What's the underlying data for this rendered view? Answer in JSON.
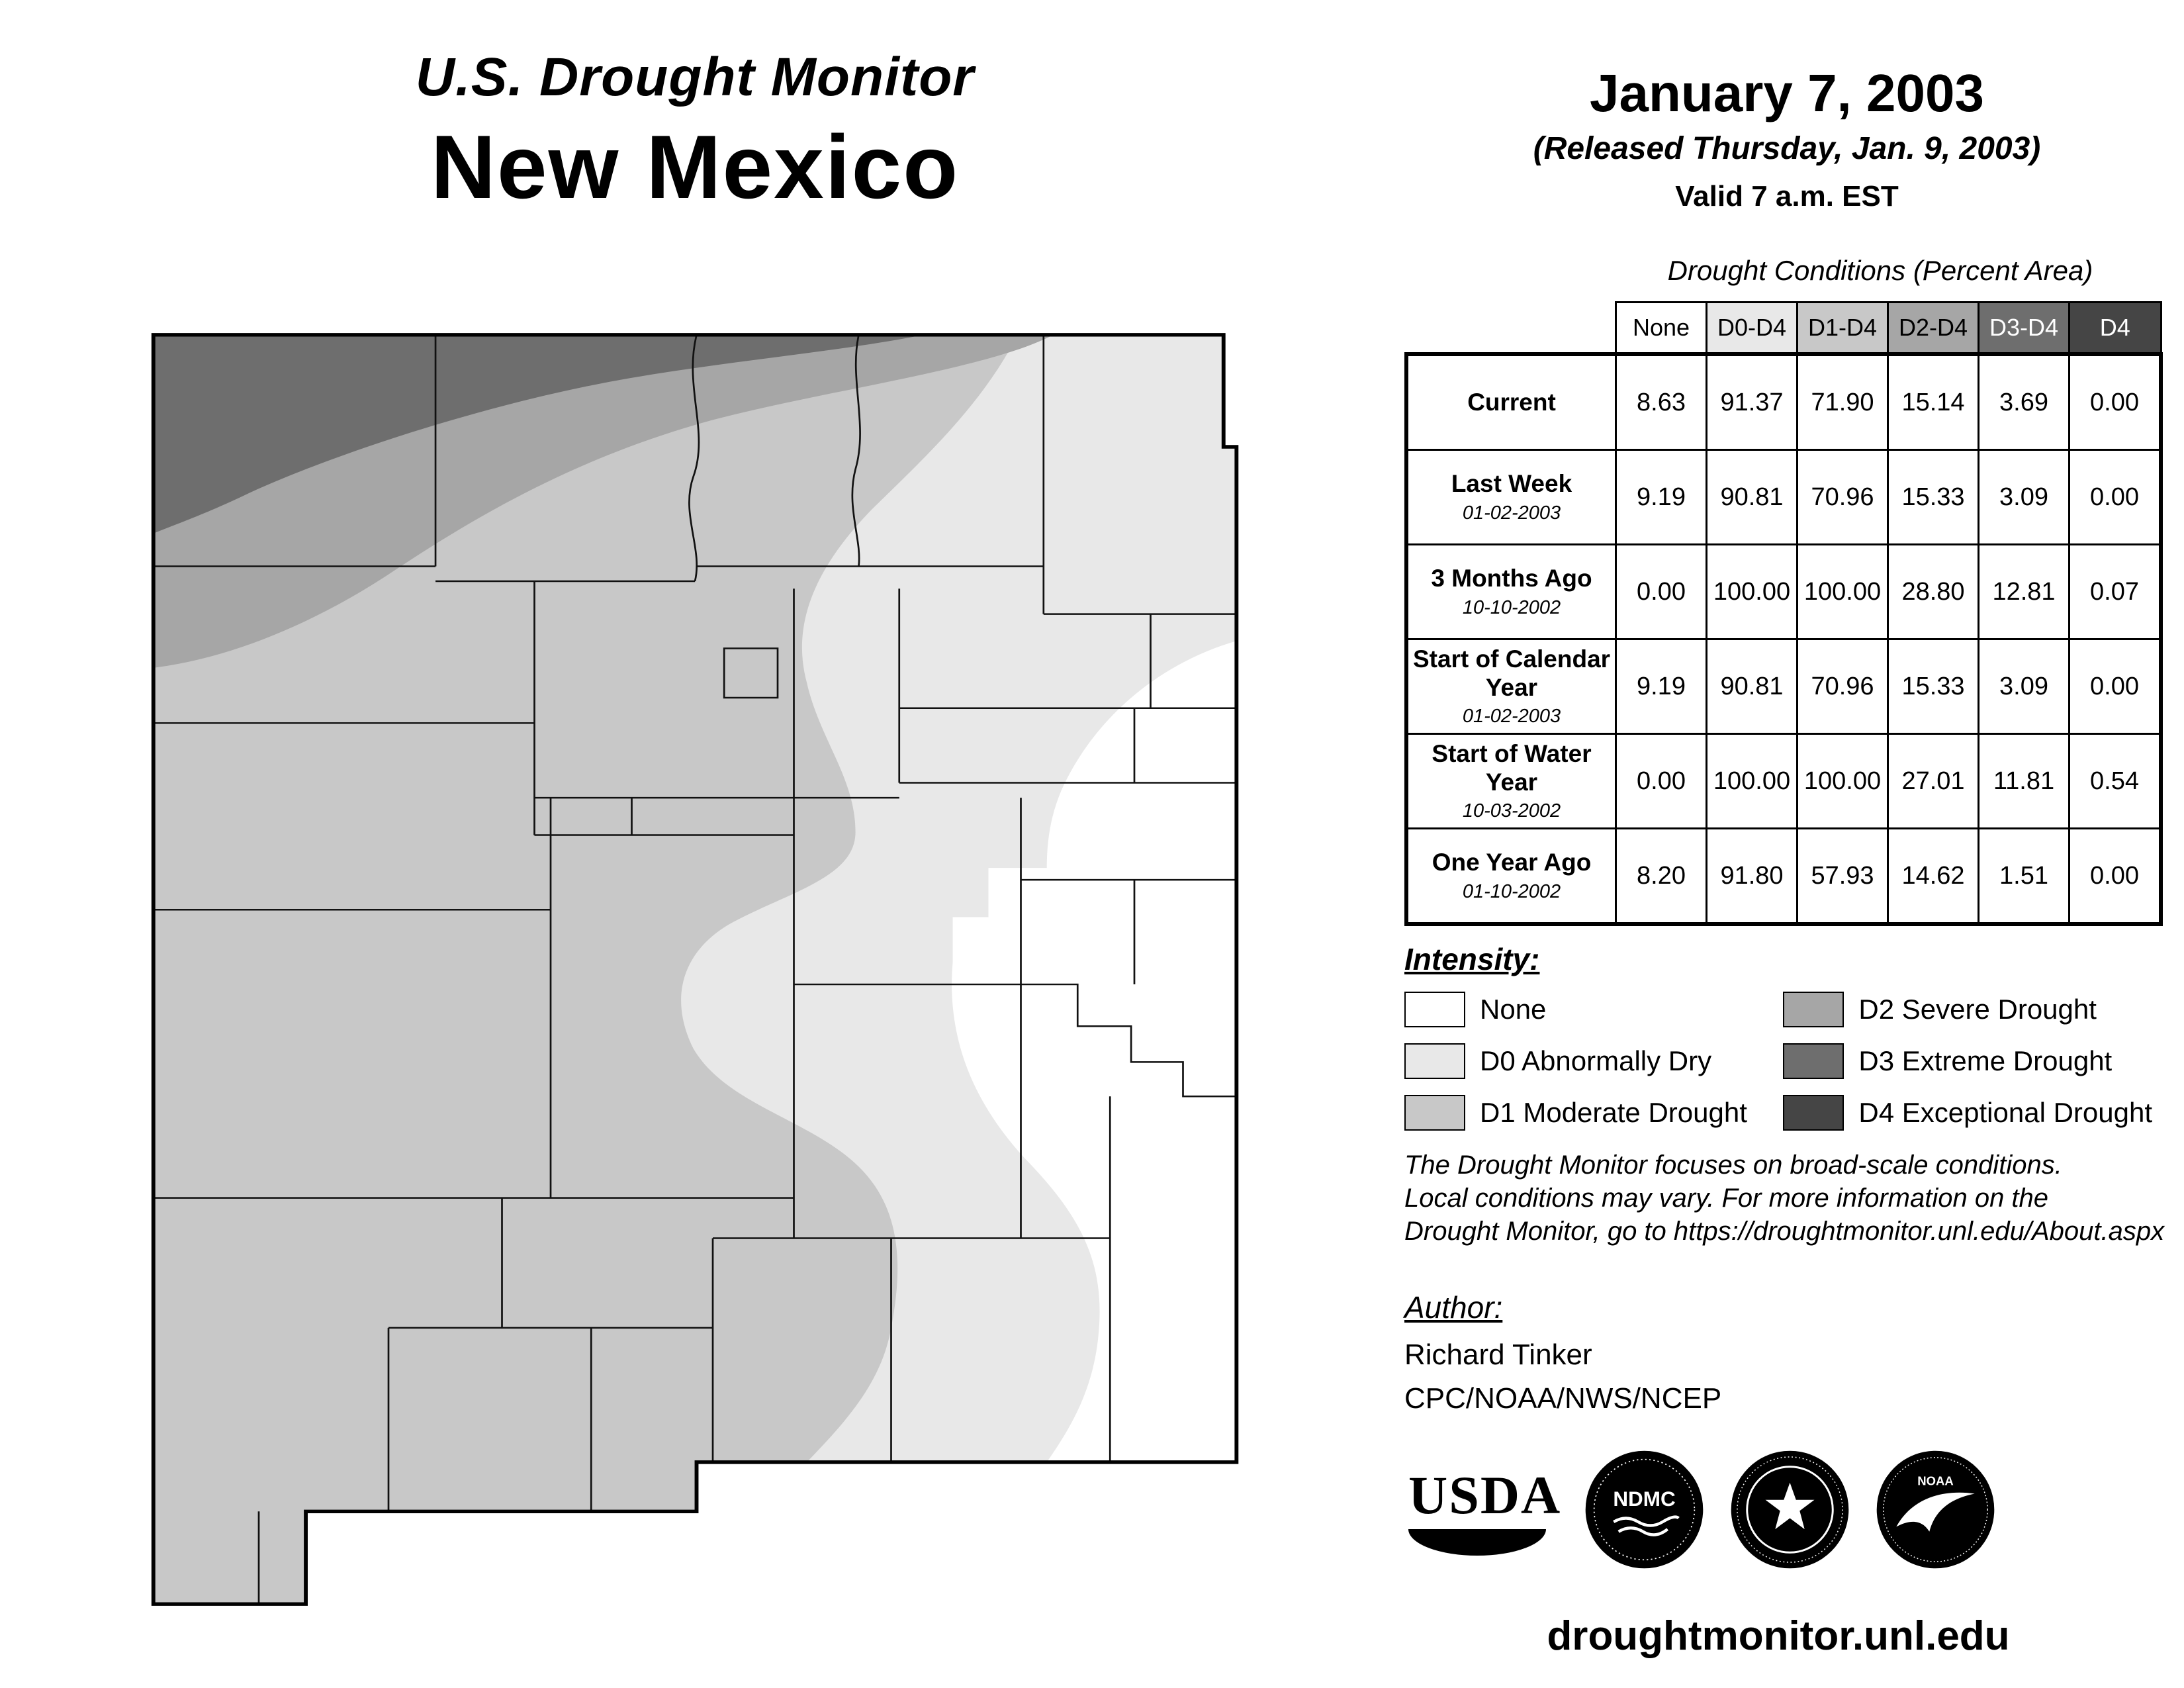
{
  "header": {
    "title_line1": "U.S. Drought Monitor",
    "title_line2": "New Mexico"
  },
  "release": {
    "date": "January 7, 2003",
    "released": "(Released Thursday, Jan. 9, 2003)",
    "valid": "Valid 7 a.m. EST"
  },
  "table": {
    "title": "Drought Conditions (Percent Area)",
    "columns": [
      "None",
      "D0-D4",
      "D1-D4",
      "D2-D4",
      "D3-D4",
      "D4"
    ],
    "rows": [
      {
        "label": "Current",
        "sublabel": "",
        "values": [
          "8.63",
          "91.37",
          "71.90",
          "15.14",
          "3.69",
          "0.00"
        ]
      },
      {
        "label": "Last Week",
        "sublabel": "01-02-2003",
        "values": [
          "9.19",
          "90.81",
          "70.96",
          "15.33",
          "3.09",
          "0.00"
        ]
      },
      {
        "label": "3 Months Ago",
        "sublabel": "10-10-2002",
        "values": [
          "0.00",
          "100.00",
          "100.00",
          "28.80",
          "12.81",
          "0.07"
        ]
      },
      {
        "label": "Start of Calendar Year",
        "sublabel": "01-02-2003",
        "values": [
          "9.19",
          "90.81",
          "70.96",
          "15.33",
          "3.09",
          "0.00"
        ]
      },
      {
        "label": "Start of Water Year",
        "sublabel": "10-03-2002",
        "values": [
          "0.00",
          "100.00",
          "100.00",
          "27.01",
          "11.81",
          "0.54"
        ]
      },
      {
        "label": "One Year Ago",
        "sublabel": "01-10-2002",
        "values": [
          "8.20",
          "91.80",
          "57.93",
          "14.62",
          "1.51",
          "0.00"
        ]
      }
    ]
  },
  "legend": {
    "title": "Intensity:",
    "items": [
      {
        "label": "None",
        "color": "#ffffff"
      },
      {
        "label": "D0 Abnormally Dry",
        "color": "#e8e8e8"
      },
      {
        "label": "D1 Moderate Drought",
        "color": "#c8c8c8"
      },
      {
        "label": "D2 Severe Drought",
        "color": "#a6a6a6"
      },
      {
        "label": "D3 Extreme Drought",
        "color": "#6e6e6e"
      },
      {
        "label": "D4 Exceptional Drought",
        "color": "#454545"
      }
    ]
  },
  "disclaimer": {
    "line1": "The Drought Monitor focuses on broad-scale conditions.",
    "line2": "Local conditions may vary. For more information on the",
    "line3": "Drought Monitor, go to https://droughtmonitor.unl.edu/About.aspx"
  },
  "author": {
    "heading": "Author:",
    "name": "Richard Tinker",
    "org": "CPC/NOAA/NWS/NCEP"
  },
  "logos": {
    "usda": "USDA",
    "ndmc": "NDMC",
    "noaa": "NOAA"
  },
  "footer": {
    "url": "droughtmonitor.unl.edu"
  }
}
